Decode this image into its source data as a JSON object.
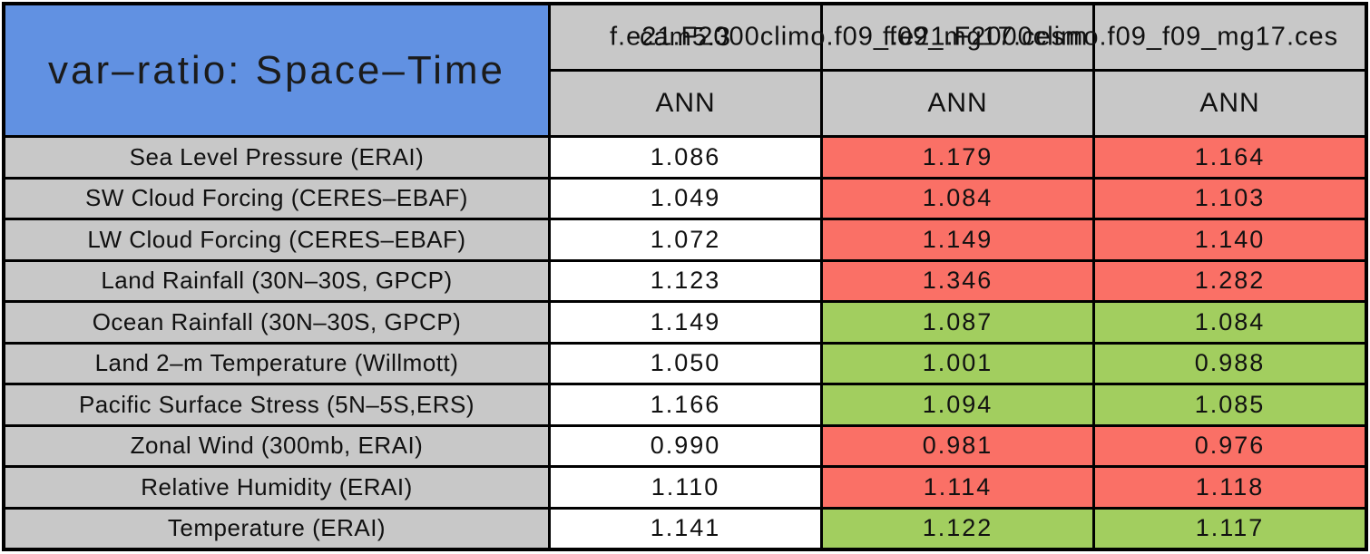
{
  "colors": {
    "table_title_bg": "#6191E2",
    "header_bg": "#C8C8C8",
    "cell_white": "#FFFFFF",
    "cell_red": "#FA7066",
    "cell_green": "#A2CE5F",
    "grid_line": "#000000",
    "text": "#111111"
  },
  "chart_data": {
    "type": "table",
    "title": "var–ratio: Space–Time",
    "columns": [
      "cam5.3",
      "f.e21.F2000climo.f09_f09_mg17.cesm",
      "f.e21.F2000climo.f09_f09_mg17.ces"
    ],
    "season_row": [
      "ANN",
      "ANN",
      "ANN"
    ],
    "rows": [
      {
        "label": "Sea Level Pressure (ERAI)",
        "values": [
          "1.086",
          "1.179",
          "1.164"
        ],
        "cell_colors": [
          "white",
          "red",
          "red"
        ]
      },
      {
        "label": "SW Cloud Forcing (CERES–EBAF)",
        "values": [
          "1.049",
          "1.084",
          "1.103"
        ],
        "cell_colors": [
          "white",
          "red",
          "red"
        ]
      },
      {
        "label": "LW Cloud Forcing (CERES–EBAF)",
        "values": [
          "1.072",
          "1.149",
          "1.140"
        ],
        "cell_colors": [
          "white",
          "red",
          "red"
        ]
      },
      {
        "label": "Land Rainfall (30N–30S, GPCP)",
        "values": [
          "1.123",
          "1.346",
          "1.282"
        ],
        "cell_colors": [
          "white",
          "red",
          "red"
        ]
      },
      {
        "label": "Ocean Rainfall (30N–30S, GPCP)",
        "values": [
          "1.149",
          "1.087",
          "1.084"
        ],
        "cell_colors": [
          "white",
          "green",
          "green"
        ]
      },
      {
        "label": "Land 2–m Temperature (Willmott)",
        "values": [
          "1.050",
          "1.001",
          "0.988"
        ],
        "cell_colors": [
          "white",
          "green",
          "green"
        ]
      },
      {
        "label": "Pacific Surface Stress (5N–5S,ERS)",
        "values": [
          "1.166",
          "1.094",
          "1.085"
        ],
        "cell_colors": [
          "white",
          "green",
          "green"
        ]
      },
      {
        "label": "Zonal Wind (300mb, ERAI)",
        "values": [
          "0.990",
          "0.981",
          "0.976"
        ],
        "cell_colors": [
          "white",
          "red",
          "red"
        ]
      },
      {
        "label": "Relative Humidity (ERAI)",
        "values": [
          "1.110",
          "1.114",
          "1.118"
        ],
        "cell_colors": [
          "white",
          "red",
          "red"
        ]
      },
      {
        "label": "Temperature (ERAI)",
        "values": [
          "1.141",
          "1.122",
          "1.117"
        ],
        "cell_colors": [
          "white",
          "green",
          "green"
        ]
      }
    ]
  }
}
